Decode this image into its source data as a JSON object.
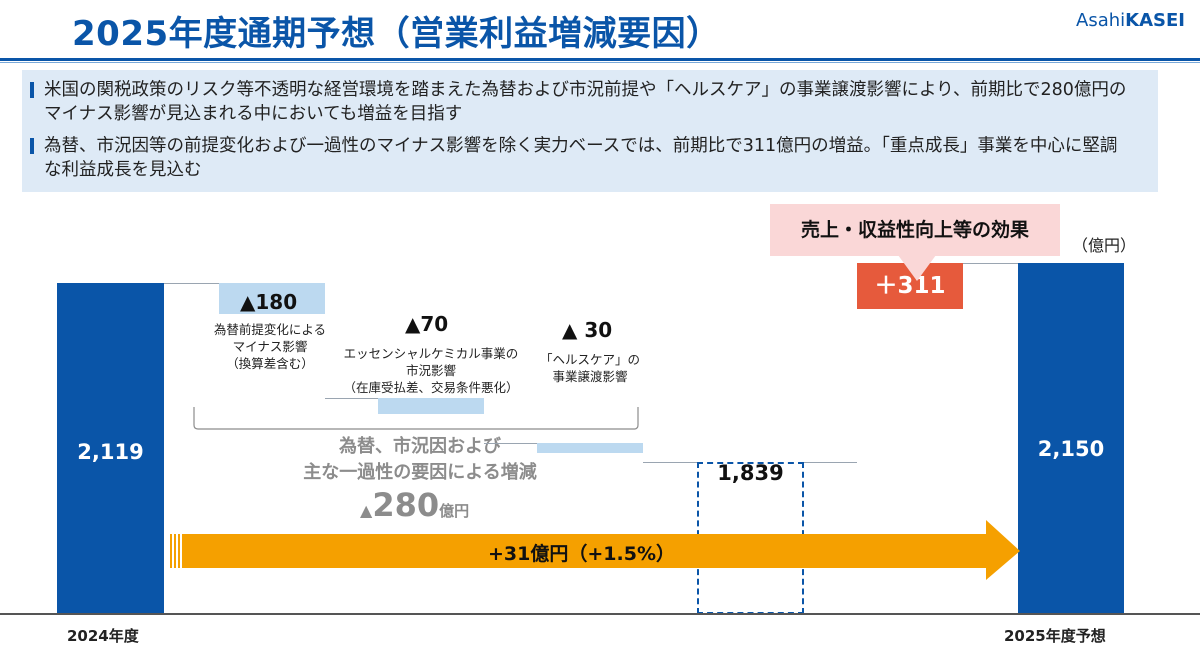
{
  "header": {
    "title": "2025年度通期予想（営業利益増減要因）",
    "logo_prefix": "Asahi",
    "logo_suffix": "KASEI"
  },
  "summary": {
    "bullet1": "米国の関税政策のリスク等不透明な経営環境を踏まえた為替および市況前提や「ヘルスケア」の事業譲渡影響により、前期比で280億円のマイナス影響が見込まれる中においても増益を目指す",
    "bullet2": "為替、市況因等の前提変化および一過性のマイナス影響を除く実力ベースでは、前期比で311億円の増益。「重点成長」事業を中心に堅調な利益成長を見込む"
  },
  "chart_data": {
    "type": "bar",
    "subtype": "waterfall",
    "unit": "（億円）",
    "categories": [
      "2024年度",
      "為替前提変化によるマイナス影響（換算差含む）",
      "エッセンシャルケミカル事業の市況影響（在庫受払差、交易条件悪化）",
      "「ヘルスケア」の事業譲渡影響",
      "",
      "売上・収益性向上等の効果",
      "2025年度予想"
    ],
    "values": [
      2119,
      -180,
      -70,
      -30,
      1839,
      311,
      2150
    ],
    "bars": {
      "start": {
        "label": "2024年度",
        "value": 2119,
        "value_label": "2,119"
      },
      "end": {
        "label": "2025年度予想",
        "value": 2150,
        "value_label": "2,150"
      },
      "subtotal": {
        "value": 1839,
        "value_label": "1,839"
      }
    },
    "negatives": [
      {
        "value": -180,
        "label": "▲180",
        "desc": [
          "為替前提変化による",
          "マイナス影響",
          "（換算差含む）"
        ]
      },
      {
        "value": -70,
        "label": "▲70",
        "desc": [
          "エッセンシャルケミカル事業の",
          "市況影響",
          "（在庫受払差、交易条件悪化）"
        ]
      },
      {
        "value": -30,
        "label": "▲ 30",
        "desc": [
          "「ヘルスケア」の",
          "事業譲渡影響"
        ]
      }
    ],
    "positive": {
      "value": 311,
      "label": "＋311",
      "callout": "売上・収益性向上等の効果"
    },
    "group": {
      "line1": "為替、市況因および",
      "line2": "主な一過性の要因による増減",
      "value_prefix": "▲",
      "value": "280",
      "value_unit": "億円"
    },
    "total_change": {
      "label": "+31億円（+1.5%）",
      "value": 31,
      "percent": 1.5
    },
    "colors": {
      "main_bar": "#0a55a8",
      "negative": "#bcd9f0",
      "positive": "#e65a3c",
      "callout": "#fad7d7",
      "arrow": "#f5a000"
    }
  }
}
